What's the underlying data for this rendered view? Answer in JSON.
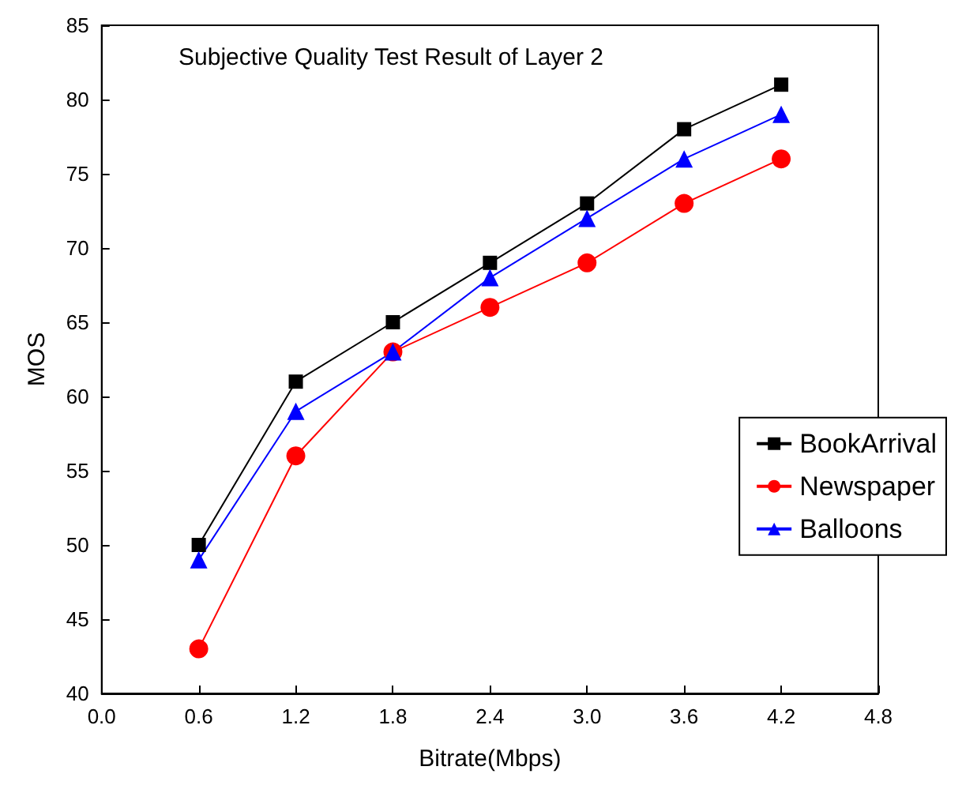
{
  "chart_data": {
    "type": "line",
    "title": "Subjective Quality Test Result of Layer 2",
    "xlabel": "Bitrate(Mbps)",
    "ylabel": "MOS",
    "x": [
      0.6,
      1.2,
      1.8,
      2.4,
      3.0,
      3.6,
      4.2
    ],
    "series": [
      {
        "name": "BookArrival",
        "color": "#000000",
        "marker": "square",
        "values": [
          50,
          61,
          65,
          69,
          73,
          78,
          81
        ]
      },
      {
        "name": "Newspaper",
        "color": "#ff0000",
        "marker": "circle",
        "values": [
          43,
          56,
          63,
          66,
          69,
          73,
          76
        ]
      },
      {
        "name": "Balloons",
        "color": "#0000ff",
        "marker": "triangle",
        "values": [
          49,
          59,
          63,
          68,
          72,
          76,
          79
        ]
      }
    ],
    "xlim": [
      0,
      4.8
    ],
    "xticks": [
      {
        "value": 0,
        "label": "0.0"
      },
      0.6,
      1.2,
      1.8,
      2.4,
      {
        "value": 3,
        "label": "3.0"
      },
      3.6,
      4.2,
      4.8
    ],
    "ylim": [
      40,
      85
    ],
    "yticks": [
      40,
      45,
      50,
      55,
      60,
      65,
      70,
      75,
      80,
      85
    ],
    "grid": false,
    "legend": "right",
    "line_style": "solid"
  }
}
